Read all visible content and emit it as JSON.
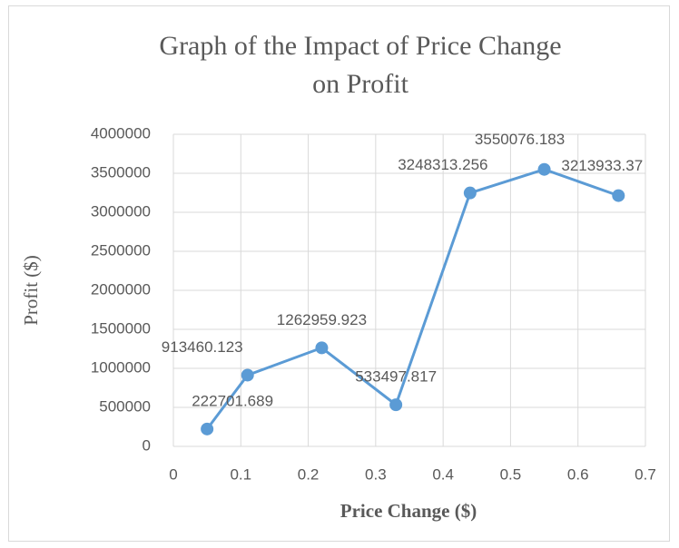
{
  "chart_data": {
    "type": "scatter-line",
    "title": "Graph of the Impact of Price Change on Profit",
    "title_lines": [
      "Graph of the Impact of Price Change",
      "on Profit"
    ],
    "x_label": "Price Change ($)",
    "y_label": "Profit ($)",
    "x": [
      0.05,
      0.11,
      0.22,
      0.33,
      0.44,
      0.55,
      0.66
    ],
    "series": [
      {
        "name": "Profit ($)",
        "color": "#5b9bd5",
        "values": [
          222701.689,
          913460.123,
          1262959.923,
          533497.817,
          3248313.256,
          3550076.183,
          3213933.37
        ]
      }
    ],
    "xlim": [
      0,
      0.7
    ],
    "xticks": [
      0,
      0.1,
      0.2,
      0.3,
      0.4,
      0.5,
      0.6,
      0.7
    ],
    "ylim": [
      0,
      4000000
    ],
    "yticks": [
      0,
      500000,
      1000000,
      1500000,
      2000000,
      2500000,
      3000000,
      3500000,
      4000000
    ],
    "grid": true,
    "data_labels": true
  }
}
